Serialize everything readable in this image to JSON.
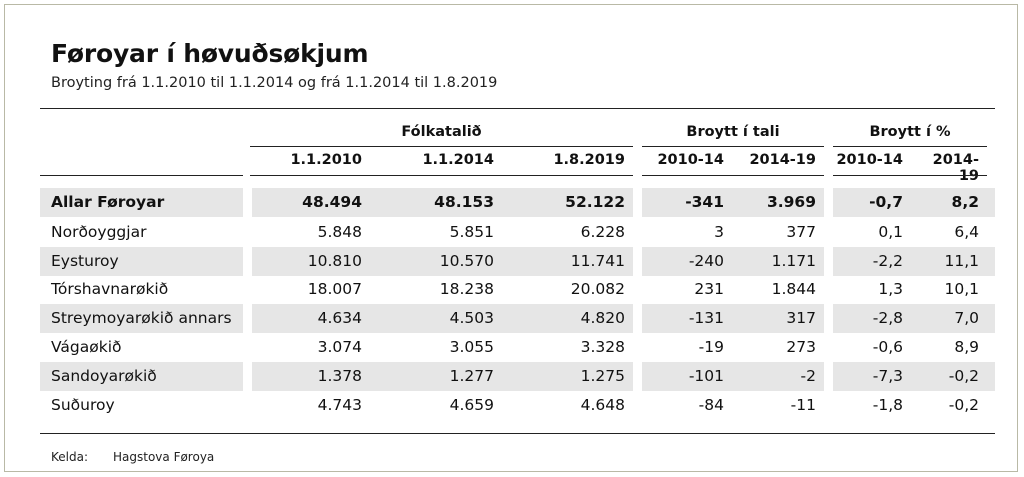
{
  "title": "Føroyar í høvuðsøkjum",
  "subtitle": "Broyting frá 1.1.2010 til 1.1.2014 og frá 1.1.2014 til 1.8.2019",
  "group_headers": {
    "population": "Fólkatalið",
    "change_count": "Broytt í tali",
    "change_pct": "Broytt í %"
  },
  "column_headers": [
    "1.1.2010",
    "1.1.2014",
    "1.8.2019",
    "2010-14",
    "2014-19",
    "2010-14",
    "2014-19"
  ],
  "rows": [
    {
      "name": "Allar Føroyar",
      "values": [
        "48.494",
        "48.153",
        "52.122",
        "-341",
        "3.969",
        "-0,7",
        "8,2"
      ],
      "bold": true
    },
    {
      "name": "Norðoyggjar",
      "values": [
        "5.848",
        "5.851",
        "6.228",
        "3",
        "377",
        "0,1",
        "6,4"
      ]
    },
    {
      "name": "Eysturoy",
      "values": [
        "10.810",
        "10.570",
        "11.741",
        "-240",
        "1.171",
        "-2,2",
        "11,1"
      ]
    },
    {
      "name": "Tórshavnarøkið",
      "values": [
        "18.007",
        "18.238",
        "20.082",
        "231",
        "1.844",
        "1,3",
        "10,1"
      ]
    },
    {
      "name": "Streymoyarøkið annars",
      "values": [
        "4.634",
        "4.503",
        "4.820",
        "-131",
        "317",
        "-2,8",
        "7,0"
      ]
    },
    {
      "name": "Vágaøkið",
      "values": [
        "3.074",
        "3.055",
        "3.328",
        "-19",
        "273",
        "-0,6",
        "8,9"
      ]
    },
    {
      "name": "Sandoyarøkið",
      "values": [
        "1.378",
        "1.277",
        "1.275",
        "-101",
        "-2",
        "-7,3",
        "-0,2"
      ]
    },
    {
      "name": "Suðuroy",
      "values": [
        "4.743",
        "4.659",
        "4.648",
        "-84",
        "-11",
        "-1,8",
        "-0,2"
      ]
    }
  ],
  "source": {
    "label": "Kelda:",
    "value": "Hagstova Føroya"
  },
  "colors": {
    "row_shade": "#e6e6e6",
    "rule": "#222222",
    "frame": "#b9b9a6"
  }
}
